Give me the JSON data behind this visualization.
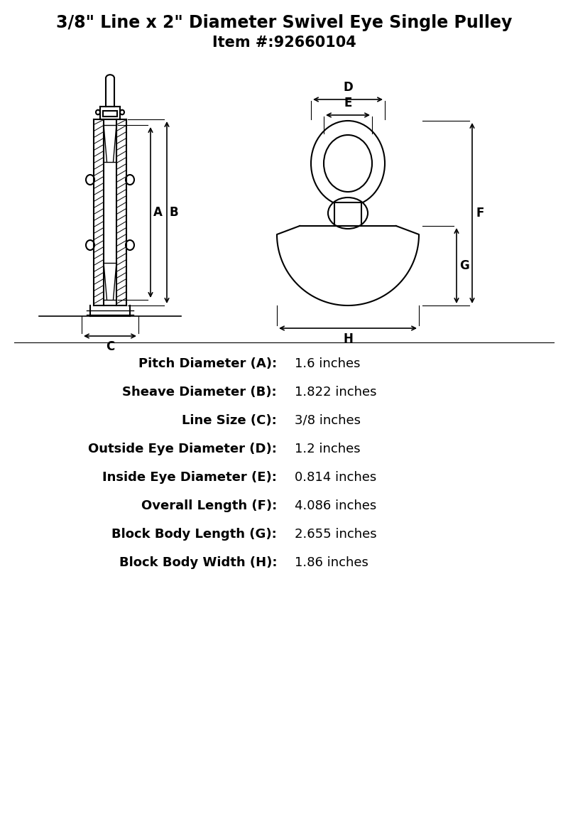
{
  "title_line1": "3/8\" Line x 2\" Diameter Swivel Eye Single Pulley",
  "title_line2": "Item #:92660104",
  "bg_color": "#ffffff",
  "line_color": "#000000",
  "specs": [
    {
      "label": "Pitch Diameter (A):",
      "value": "1.6 inches"
    },
    {
      "label": "Sheave Diameter (B):",
      "value": "1.822 inches"
    },
    {
      "label": "Line Size (C):",
      "value": "3/8 inches"
    },
    {
      "label": "Outside Eye Diameter (D):",
      "value": "1.2 inches"
    },
    {
      "label": "Inside Eye Diameter (E):",
      "value": "0.814 inches"
    },
    {
      "label": "Overall Length (F):",
      "value": "4.086 inches"
    },
    {
      "label": "Block Body Length (G):",
      "value": "2.655 inches"
    },
    {
      "label": "Block Body Width (H):",
      "value": "1.86 inches"
    }
  ]
}
